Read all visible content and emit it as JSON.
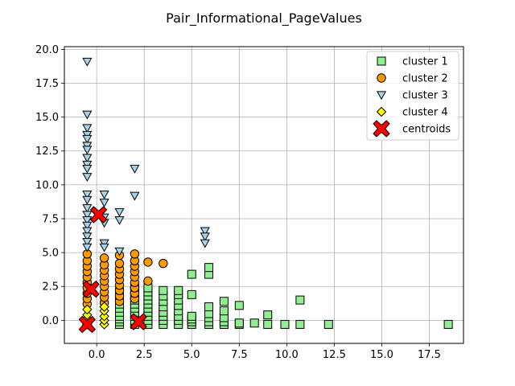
{
  "chart_data": {
    "type": "scatter",
    "title": "Pair_Informational_PageValues",
    "xlabel": "",
    "ylabel": "",
    "xlim": [
      -1.7,
      19.3
    ],
    "ylim": [
      -1.7,
      20.2
    ],
    "xticks": [
      0.0,
      2.5,
      5.0,
      7.5,
      10.0,
      12.5,
      15.0,
      17.5
    ],
    "yticks": [
      0.0,
      2.5,
      5.0,
      7.5,
      10.0,
      12.5,
      15.0,
      17.5,
      20.0
    ],
    "grid": true,
    "legend_position": "top-right",
    "series": [
      {
        "name": "cluster 1",
        "marker": "square",
        "color": "#90ee90",
        "points": [
          [
            1.2,
            -0.3
          ],
          [
            1.2,
            -0.1
          ],
          [
            1.2,
            0.1
          ],
          [
            1.2,
            0.3
          ],
          [
            1.2,
            0.6
          ],
          [
            1.2,
            0.9
          ],
          [
            1.2,
            1.2
          ],
          [
            1.2,
            1.5
          ],
          [
            1.2,
            1.8
          ],
          [
            1.2,
            2.1
          ],
          [
            2.0,
            -0.3
          ],
          [
            2.0,
            0.0
          ],
          [
            2.0,
            0.3
          ],
          [
            2.0,
            0.6
          ],
          [
            2.0,
            0.9
          ],
          [
            2.0,
            1.2
          ],
          [
            2.0,
            1.5
          ],
          [
            2.0,
            1.8
          ],
          [
            2.0,
            2.2
          ],
          [
            2.0,
            2.5
          ],
          [
            2.7,
            -0.3
          ],
          [
            2.7,
            0.0
          ],
          [
            2.7,
            0.3
          ],
          [
            2.7,
            0.6
          ],
          [
            2.7,
            0.9
          ],
          [
            2.7,
            1.2
          ],
          [
            2.7,
            1.5
          ],
          [
            2.7,
            1.8
          ],
          [
            2.7,
            2.1
          ],
          [
            2.7,
            2.4
          ],
          [
            3.5,
            -0.3
          ],
          [
            3.5,
            0.0
          ],
          [
            3.5,
            0.3
          ],
          [
            3.5,
            0.6
          ],
          [
            3.5,
            1.0
          ],
          [
            3.5,
            1.4
          ],
          [
            3.5,
            1.8
          ],
          [
            3.5,
            2.2
          ],
          [
            4.3,
            -0.3
          ],
          [
            4.3,
            0.0
          ],
          [
            4.3,
            0.3
          ],
          [
            4.3,
            0.7
          ],
          [
            4.3,
            1.1
          ],
          [
            4.3,
            1.5
          ],
          [
            4.3,
            1.9
          ],
          [
            4.3,
            2.2
          ],
          [
            5.0,
            -0.3
          ],
          [
            5.0,
            -0.1
          ],
          [
            5.0,
            0.1
          ],
          [
            5.0,
            0.3
          ],
          [
            5.0,
            1.9
          ],
          [
            5.0,
            3.4
          ],
          [
            5.9,
            -0.3
          ],
          [
            5.9,
            -0.1
          ],
          [
            5.9,
            0.2
          ],
          [
            5.9,
            0.5
          ],
          [
            5.9,
            1.0
          ],
          [
            5.9,
            3.4
          ],
          [
            5.9,
            3.9
          ],
          [
            6.7,
            -0.3
          ],
          [
            6.7,
            -0.1
          ],
          [
            6.7,
            0.2
          ],
          [
            6.7,
            0.7
          ],
          [
            6.7,
            1.4
          ],
          [
            7.5,
            -0.3
          ],
          [
            7.5,
            -0.2
          ],
          [
            7.5,
            1.1
          ],
          [
            8.3,
            -0.2
          ],
          [
            9.0,
            -0.3
          ],
          [
            9.0,
            0.4
          ],
          [
            9.9,
            -0.3
          ],
          [
            10.7,
            -0.3
          ],
          [
            10.7,
            1.5
          ],
          [
            12.2,
            -0.3
          ],
          [
            18.5,
            -0.3
          ]
        ]
      },
      {
        "name": "cluster 2",
        "marker": "circle",
        "color": "#ff9900",
        "points": [
          [
            -0.5,
            1.2
          ],
          [
            -0.5,
            1.6
          ],
          [
            -0.5,
            2.0
          ],
          [
            -0.5,
            2.4
          ],
          [
            -0.5,
            2.8
          ],
          [
            -0.5,
            3.2
          ],
          [
            -0.5,
            3.6
          ],
          [
            -0.5,
            4.0
          ],
          [
            -0.5,
            4.4
          ],
          [
            -0.5,
            4.9
          ],
          [
            0.4,
            1.3
          ],
          [
            0.4,
            1.7
          ],
          [
            0.4,
            2.1
          ],
          [
            0.4,
            2.5
          ],
          [
            0.4,
            2.9
          ],
          [
            0.4,
            3.3
          ],
          [
            0.4,
            3.7
          ],
          [
            0.4,
            4.1
          ],
          [
            0.4,
            4.6
          ],
          [
            1.2,
            1.4
          ],
          [
            1.2,
            1.8
          ],
          [
            1.2,
            2.2
          ],
          [
            1.2,
            2.6
          ],
          [
            1.2,
            3.0
          ],
          [
            1.2,
            3.4
          ],
          [
            1.2,
            3.8
          ],
          [
            1.2,
            4.2
          ],
          [
            1.2,
            4.8
          ],
          [
            2.0,
            1.6
          ],
          [
            2.0,
            2.0
          ],
          [
            2.0,
            2.4
          ],
          [
            2.0,
            2.8
          ],
          [
            2.0,
            3.2
          ],
          [
            2.0,
            3.6
          ],
          [
            2.0,
            4.0
          ],
          [
            2.0,
            4.4
          ],
          [
            2.0,
            4.9
          ],
          [
            2.7,
            2.9
          ],
          [
            2.7,
            4.3
          ],
          [
            3.5,
            4.2
          ]
        ]
      },
      {
        "name": "cluster 3",
        "marker": "triangle-down",
        "color": "#a6d2ea",
        "points": [
          [
            -0.5,
            19.1
          ],
          [
            -0.5,
            15.2
          ],
          [
            -0.5,
            14.2
          ],
          [
            -0.5,
            13.7
          ],
          [
            -0.5,
            13.4
          ],
          [
            -0.5,
            12.9
          ],
          [
            -0.5,
            12.6
          ],
          [
            -0.5,
            12.0
          ],
          [
            -0.5,
            11.5
          ],
          [
            -0.5,
            11.2
          ],
          [
            -0.5,
            10.6
          ],
          [
            -0.5,
            9.3
          ],
          [
            -0.5,
            8.9
          ],
          [
            -0.5,
            8.3
          ],
          [
            -0.5,
            7.8
          ],
          [
            -0.5,
            7.4
          ],
          [
            -0.5,
            7.0
          ],
          [
            -0.5,
            6.6
          ],
          [
            -0.5,
            6.2
          ],
          [
            -0.5,
            5.8
          ],
          [
            -0.5,
            5.4
          ],
          [
            0.4,
            9.3
          ],
          [
            0.4,
            8.7
          ],
          [
            0.4,
            7.6
          ],
          [
            0.4,
            7.2
          ],
          [
            0.4,
            5.7
          ],
          [
            0.4,
            5.4
          ],
          [
            1.2,
            8.0
          ],
          [
            1.2,
            7.4
          ],
          [
            1.2,
            5.1
          ],
          [
            2.0,
            11.2
          ],
          [
            2.0,
            9.2
          ],
          [
            5.7,
            6.6
          ],
          [
            5.7,
            6.2
          ],
          [
            5.7,
            5.7
          ]
        ]
      },
      {
        "name": "cluster 4",
        "marker": "diamond",
        "color": "#ffff00",
        "points": [
          [
            -0.5,
            -0.3
          ],
          [
            -0.5,
            0.1
          ],
          [
            -0.5,
            0.4
          ],
          [
            -0.5,
            0.8
          ],
          [
            0.4,
            -0.3
          ],
          [
            0.4,
            0.0
          ],
          [
            0.4,
            0.3
          ],
          [
            0.4,
            0.7
          ],
          [
            0.4,
            1.0
          ]
        ]
      },
      {
        "name": "centroids",
        "marker": "x-filled",
        "color": "#ff0000",
        "points": [
          [
            -0.5,
            -0.3
          ],
          [
            0.1,
            7.8
          ],
          [
            -0.3,
            2.3
          ],
          [
            2.2,
            -0.1
          ]
        ]
      }
    ]
  }
}
